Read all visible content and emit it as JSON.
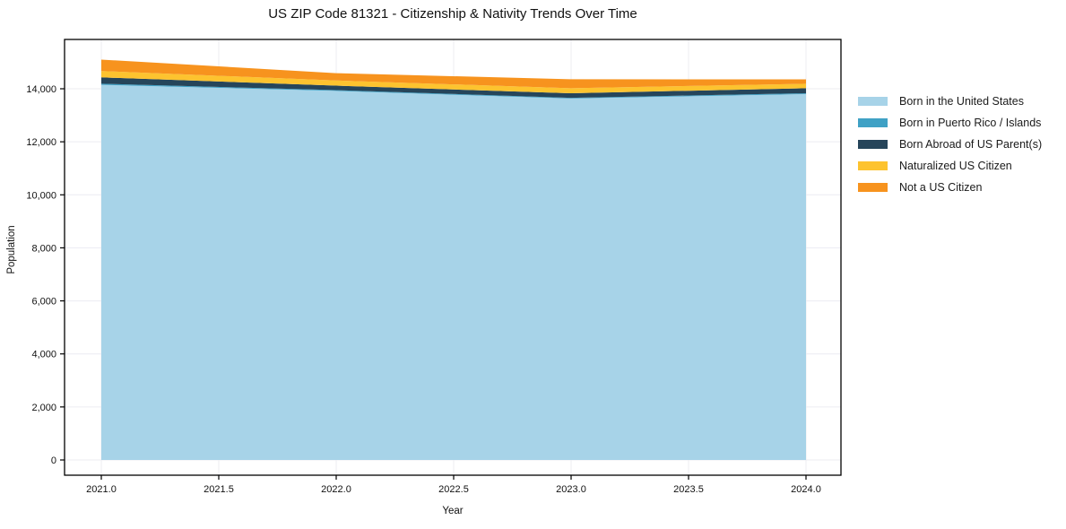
{
  "chart": {
    "title": "US ZIP Code 81321 - Citizenship & Nativity Trends Over Time",
    "xlabel": "Year",
    "ylabel": "Population"
  },
  "chart_data": {
    "type": "area",
    "stacked": true,
    "title": "US ZIP Code 81321 - Citizenship & Nativity Trends Over Time",
    "xlabel": "Year",
    "ylabel": "Population",
    "x": [
      2021,
      2022,
      2023,
      2024
    ],
    "series": [
      {
        "name": "Born in the United States",
        "color": "#a7d3e8",
        "values": [
          14150,
          13920,
          13630,
          13800
        ]
      },
      {
        "name": "Born in Puerto Rico / Islands",
        "color": "#3fa1c5",
        "values": [
          40,
          30,
          30,
          30
        ]
      },
      {
        "name": "Born Abroad of US Parent(s)",
        "color": "#26455a",
        "values": [
          240,
          170,
          170,
          190
        ]
      },
      {
        "name": "Naturalized US Citizen",
        "color": "#fdc32f",
        "values": [
          240,
          190,
          190,
          170
        ]
      },
      {
        "name": "Not a US Citizen",
        "color": "#f7931e",
        "values": [
          430,
          280,
          340,
          165
        ]
      }
    ],
    "totals": [
      15100,
      14590,
      14360,
      14355
    ],
    "x_tick_labels": [
      "2021.0",
      "2021.5",
      "2022.0",
      "2022.5",
      "2023.0",
      "2023.5",
      "2024.0"
    ],
    "x_tick_values": [
      2021.0,
      2021.5,
      2022.0,
      2022.5,
      2023.0,
      2023.5,
      2024.0
    ],
    "y_tick_labels": [
      "0",
      "2,000",
      "4,000",
      "6,000",
      "8,000",
      "10,000",
      "12,000",
      "14,000"
    ],
    "y_tick_values": [
      0,
      2000,
      4000,
      6000,
      8000,
      10000,
      12000,
      14000
    ],
    "ylim": [
      -600,
      15900
    ],
    "xlim": [
      2020.84,
      2024.15
    ],
    "grid": true,
    "legend_position": "right-outside"
  },
  "colors": {
    "grid": "#ececf2",
    "spine": "#000000",
    "text": "#111111",
    "background": "#ffffff"
  }
}
